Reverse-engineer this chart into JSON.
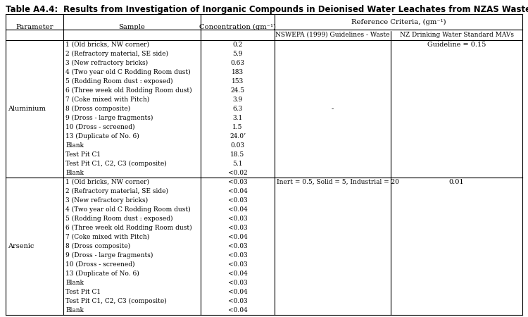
{
  "title_bold": "Table A4.4:",
  "title_rest": "   Results from Investigation of Inorganic Compounds in Deionised Water Leachates from NZAS Waste Samples",
  "col_headers_row1": [
    "Parameter",
    "Sample",
    "Concentration (gm⁻¹)",
    "Reference Criteria, (gm⁻¹)"
  ],
  "col_headers_row2_nswepa": "NSWEPA (1999) Guidelines - Waste",
  "col_headers_row2_nzdw": "NZ Drinking Water Standard MAVs",
  "aluminium_samples": [
    "1 (Old bricks, NW corner)",
    "2 (Refractory material, SE side)",
    "3 (New refractory bricks)",
    "4 (Two year old C Rodding Room dust)",
    "5 (Rodding Room dust : exposed)",
    "6 (Three week old Rodding Room dust)",
    "7 (Coke mixed with Pitch)",
    "8 (Dross composite)",
    "9 (Dross - large fragments)",
    "10 (Dross - screened)",
    "13 (Duplicate of No. 6)",
    "Blank",
    "Test Pit C1",
    "Test Pit C1, C2, C3 (composite)",
    "Blank"
  ],
  "aluminium_concentrations": [
    "0.2",
    "5.9",
    "0.63",
    "183",
    "153",
    "24.5",
    "3.9",
    "6.3",
    "3.1",
    "1.5",
    "24.0ʼ",
    "0.03",
    "18.5",
    "5.1",
    "<0.02"
  ],
  "aluminium_nswepa": "-",
  "aluminium_nzdw": "Guideline = 0.15",
  "arsenic_samples": [
    "1 (Old bricks, NW corner)",
    "2 (Refractory material, SE side)",
    "3 (New refractory bricks)",
    "4 (Two year old C Rodding Room dust)",
    "5 (Rodding Room dust : exposed)",
    "6 (Three week old Rodding Room dust)",
    "7 (Coke mixed with Pitch)",
    "8 (Dross composite)",
    "9 (Dross - large fragments)",
    "10 (Dross - screened)",
    "13 (Duplicate of No. 6)",
    "Blank",
    "Test Pit C1",
    "Test Pit C1, C2, C3 (composite)",
    "Blank"
  ],
  "arsenic_concentrations": [
    "<0.03",
    "<0.04",
    "<0.03",
    "<0.04",
    "<0.03",
    "<0.03",
    "<0.04",
    "<0.03",
    "<0.03",
    "<0.03",
    "<0.04",
    "<0.03",
    "<0.04",
    "<0.03",
    "<0.04"
  ],
  "arsenic_nswepa": "Inert = 0.5, Solid = 5, Industrial = 20",
  "arsenic_nzdw": "0.01",
  "bg_color": "#ffffff",
  "fs": 7.0,
  "fs_title": 8.5,
  "fs_header": 7.2
}
